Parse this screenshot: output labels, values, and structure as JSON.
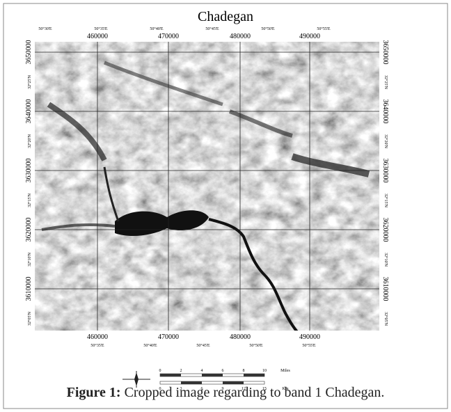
{
  "map": {
    "title": "Chadegan",
    "top_degree_labels": [
      "50°30'E",
      "50°35'E",
      "50°40'E",
      "50°45'E",
      "50°50'E",
      "50°55'E"
    ],
    "bottom_degree_labels": [
      "50°35'E",
      "50°40'E",
      "50°45'E",
      "50°50'E",
      "50°55'E"
    ],
    "easting_labels": [
      "460000",
      "470000",
      "480000",
      "490000"
    ],
    "northing_labels": [
      "3650000",
      "3640000",
      "3630000",
      "3620000",
      "3610000"
    ],
    "left_degree_labels": [
      "32°25'N",
      "32°20'N",
      "32°15'N",
      "32°10'N",
      "32°05'N"
    ],
    "scale_miles": [
      "0",
      "2",
      "4",
      "6",
      "8",
      "10",
      "Miles"
    ],
    "scale_km": [
      "0",
      "3",
      "6",
      "9",
      "12",
      "15",
      "Km"
    ]
  },
  "caption": {
    "label": "Figure 1:",
    "text": "Cropped image regarding to band 1 Chadegan."
  }
}
